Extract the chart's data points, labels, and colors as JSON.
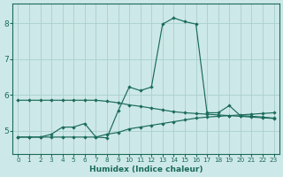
{
  "xlabel": "Humidex (Indice chaleur)",
  "ylabel": "",
  "bg_color": "#cde8e8",
  "grid_color": "#aacece",
  "line_color": "#1a6b5a",
  "xlim": [
    -0.5,
    23.5
  ],
  "ylim": [
    4.35,
    8.55
  ],
  "yticks": [
    5,
    6,
    7,
    8
  ],
  "xticks": [
    0,
    1,
    2,
    3,
    4,
    5,
    6,
    7,
    8,
    9,
    10,
    11,
    12,
    13,
    14,
    15,
    16,
    17,
    18,
    19,
    20,
    21,
    22,
    23
  ],
  "line1_x": [
    0,
    1,
    2,
    3,
    4,
    5,
    6,
    7,
    8,
    9,
    10,
    11,
    12,
    13,
    14,
    15,
    16,
    17,
    18,
    19,
    20,
    21,
    22,
    23
  ],
  "line1_y": [
    5.85,
    5.85,
    5.85,
    5.85,
    5.85,
    5.85,
    5.85,
    5.85,
    5.82,
    5.78,
    5.72,
    5.68,
    5.63,
    5.58,
    5.53,
    5.5,
    5.48,
    5.46,
    5.44,
    5.42,
    5.4,
    5.38,
    5.36,
    5.34
  ],
  "line2_x": [
    0,
    1,
    2,
    3,
    4,
    5,
    6,
    7,
    8,
    9,
    10,
    11,
    12,
    13,
    14,
    15,
    16,
    17,
    18,
    19,
    20,
    21,
    22,
    23
  ],
  "line2_y": [
    4.82,
    4.82,
    4.82,
    4.82,
    4.82,
    4.82,
    4.82,
    4.82,
    4.9,
    4.95,
    5.05,
    5.1,
    5.15,
    5.2,
    5.25,
    5.3,
    5.35,
    5.38,
    5.4,
    5.42,
    5.44,
    5.46,
    5.48,
    5.5
  ],
  "line3_x": [
    0,
    1,
    2,
    3,
    4,
    5,
    6,
    7,
    8,
    9,
    10,
    11,
    12,
    13,
    14,
    15,
    16,
    17,
    18,
    19,
    20,
    21,
    22,
    23
  ],
  "line3_y": [
    4.82,
    4.82,
    4.82,
    4.9,
    5.1,
    5.1,
    5.2,
    4.82,
    4.8,
    5.55,
    6.22,
    6.12,
    6.22,
    7.98,
    8.15,
    8.05,
    7.98,
    5.5,
    5.5,
    5.7,
    5.42,
    5.4,
    5.38,
    5.35
  ]
}
